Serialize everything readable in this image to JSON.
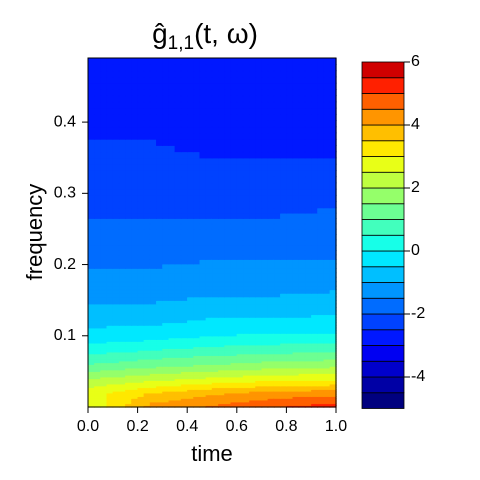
{
  "chart_data": {
    "type": "filled-contour",
    "title": {
      "base": "ĝ",
      "subscript": "1,1",
      "rest": "(t, ω)"
    },
    "x_label": "time",
    "y_label": "frequency",
    "xlim": [
      0,
      1
    ],
    "ylim": [
      0,
      0.49
    ],
    "xticks": [
      {
        "value": 0,
        "label": "0.0"
      },
      {
        "value": 0.2,
        "label": "0.2"
      },
      {
        "value": 0.4,
        "label": "0.4"
      },
      {
        "value": 0.6,
        "label": "0.6"
      },
      {
        "value": 0.8,
        "label": "0.8"
      },
      {
        "value": 1,
        "label": "1.0"
      }
    ],
    "yticks": [
      0.1,
      0.2,
      0.3,
      0.4
    ],
    "x": [
      0,
      0.25,
      0.5,
      0.75,
      1
    ],
    "y": [
      0,
      0.02,
      0.04,
      0.06,
      0.08,
      0.1,
      0.13,
      0.17,
      0.22,
      0.28,
      0.35,
      0.42,
      0.49
    ],
    "z": [
      [
        2.5,
        4.2,
        4.6,
        5.0,
        5.3
      ],
      [
        2.8,
        3.5,
        3.9,
        4.2,
        4.3
      ],
      [
        2.0,
        2.3,
        2.6,
        2.8,
        2.9
      ],
      [
        1.0,
        1.3,
        1.5,
        1.7,
        1.8
      ],
      [
        0.3,
        0.5,
        0.7,
        0.8,
        0.9
      ],
      [
        -0.3,
        -0.2,
        0,
        0.1,
        0.1
      ],
      [
        -0.8,
        -0.8,
        -0.6,
        -0.6,
        -0.5
      ],
      [
        -1.3,
        -1.3,
        -1.2,
        -1.2,
        -1.1
      ],
      [
        -1.7,
        -1.7,
        -1.6,
        -1.6,
        -1.6
      ],
      [
        -2.1,
        -2.1,
        -2.1,
        -2.1,
        -2.0
      ],
      [
        -2.4,
        -2.4,
        -2.5,
        -2.5,
        -2.5
      ],
      [
        -2.7,
        -2.7,
        -2.8,
        -2.9,
        -2.9
      ],
      [
        -3.0,
        -3.0,
        -3.0,
        -3.0,
        -3.0
      ]
    ],
    "levels": [
      -5,
      -4.5,
      -4,
      -3.5,
      -3,
      -2.5,
      -2,
      -1.5,
      -1,
      -0.5,
      0,
      0.5,
      1,
      1.5,
      2,
      2.5,
      3,
      3.5,
      4,
      4.5,
      5,
      5.5,
      6
    ],
    "colors": [
      "#00007F",
      "#0000A5",
      "#0000CB",
      "#0000F2",
      "#0018FF",
      "#0042FF",
      "#006CFF",
      "#0095FF",
      "#00BFFF",
      "#00E8FF",
      "#17FFE8",
      "#42FFBD",
      "#6CFF93",
      "#95FF6A",
      "#BFFF40",
      "#E8FF17",
      "#FFE800",
      "#FFBF00",
      "#FF9500",
      "#FF6000",
      "#FF2000",
      "#D00000"
    ],
    "colorbar_ticks": [
      -4,
      -2,
      0,
      2,
      4,
      6
    ]
  }
}
